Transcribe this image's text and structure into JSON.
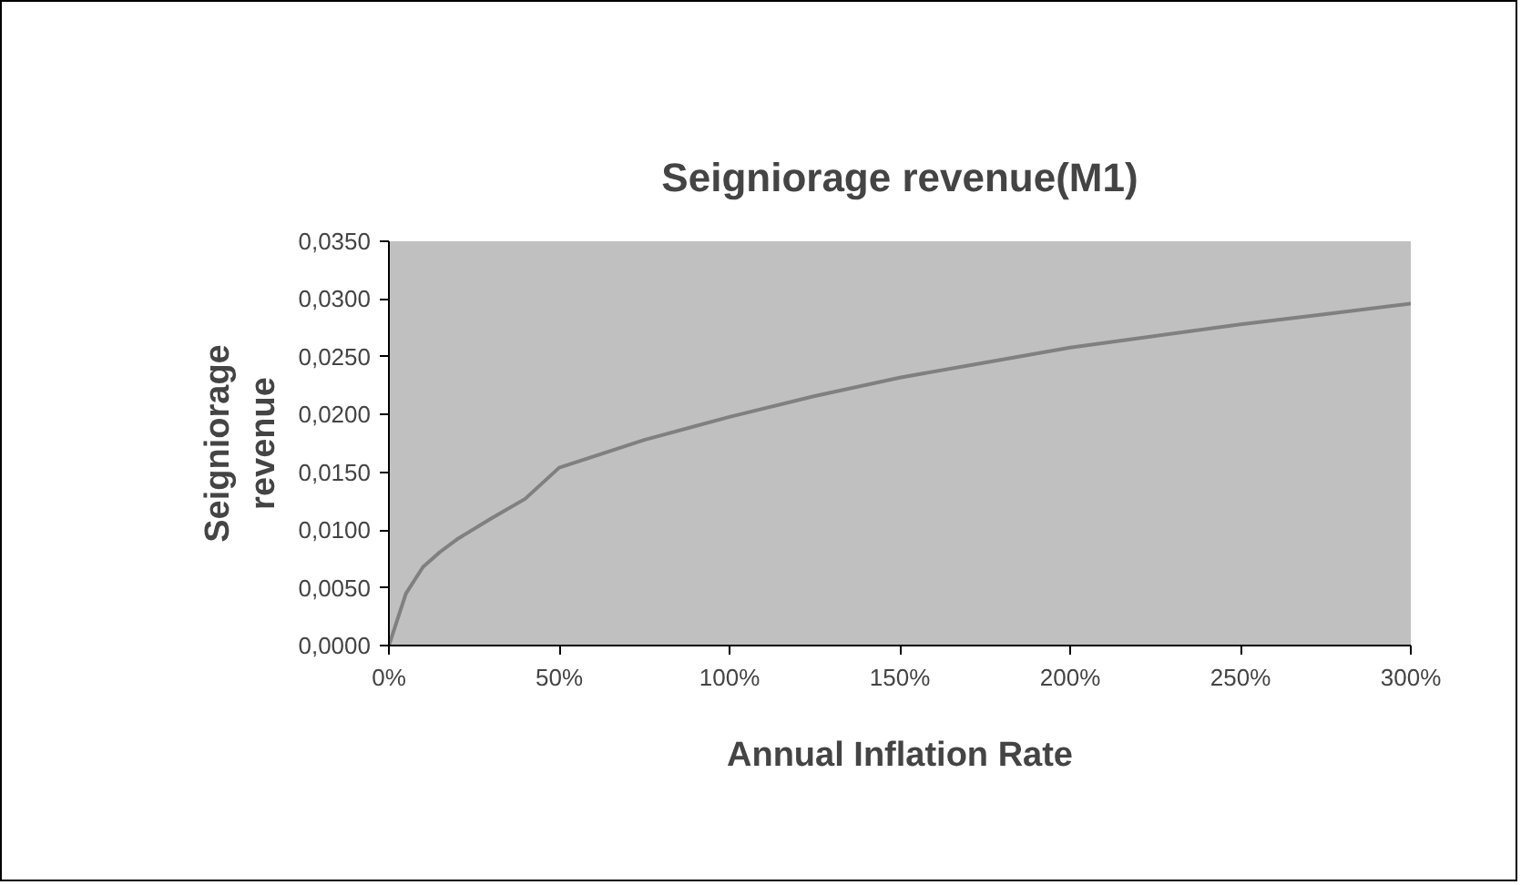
{
  "chart_data": {
    "type": "line",
    "title": "Seigniorage revenue(M1)",
    "xlabel": "Annual Inflation Rate",
    "ylabel": "Seigniorage revenue",
    "x": [
      0,
      5,
      10,
      15,
      20,
      30,
      40,
      50,
      75,
      100,
      125,
      150,
      175,
      200,
      225,
      250,
      275,
      300
    ],
    "series": [
      {
        "color": "#808080",
        "values": [
          0,
          0.0045,
          0.0068,
          0.0081,
          0.0092,
          0.011,
          0.0127,
          0.0154,
          0.0178,
          0.0198,
          0.0216,
          0.0232,
          0.0245,
          0.0258,
          0.0268,
          0.0278,
          0.0287,
          0.0296
        ]
      }
    ],
    "xlim": [
      0,
      300
    ],
    "xticks": [
      {
        "value": 0,
        "label": "0%"
      },
      {
        "value": 50,
        "label": "50%"
      },
      {
        "value": 100,
        "label": "100%"
      },
      {
        "value": 150,
        "label": "150%"
      },
      {
        "value": 200,
        "label": "200%"
      },
      {
        "value": 250,
        "label": "250%"
      },
      {
        "value": 300,
        "label": "300%"
      }
    ],
    "ylim": [
      0,
      0.035
    ],
    "yticks": [
      {
        "value": 0,
        "label": "0,0000"
      },
      {
        "value": 0.005,
        "label": "0,0050"
      },
      {
        "value": 0.01,
        "label": "0,0100"
      },
      {
        "value": 0.015,
        "label": "0,0150"
      },
      {
        "value": 0.02,
        "label": "0,0200"
      },
      {
        "value": 0.025,
        "label": "0,0250"
      },
      {
        "value": 0.03,
        "label": "0,0300"
      },
      {
        "value": 0.035,
        "label": "0,0350"
      }
    ],
    "grid": false,
    "marker": "none",
    "line_style": "solid"
  }
}
